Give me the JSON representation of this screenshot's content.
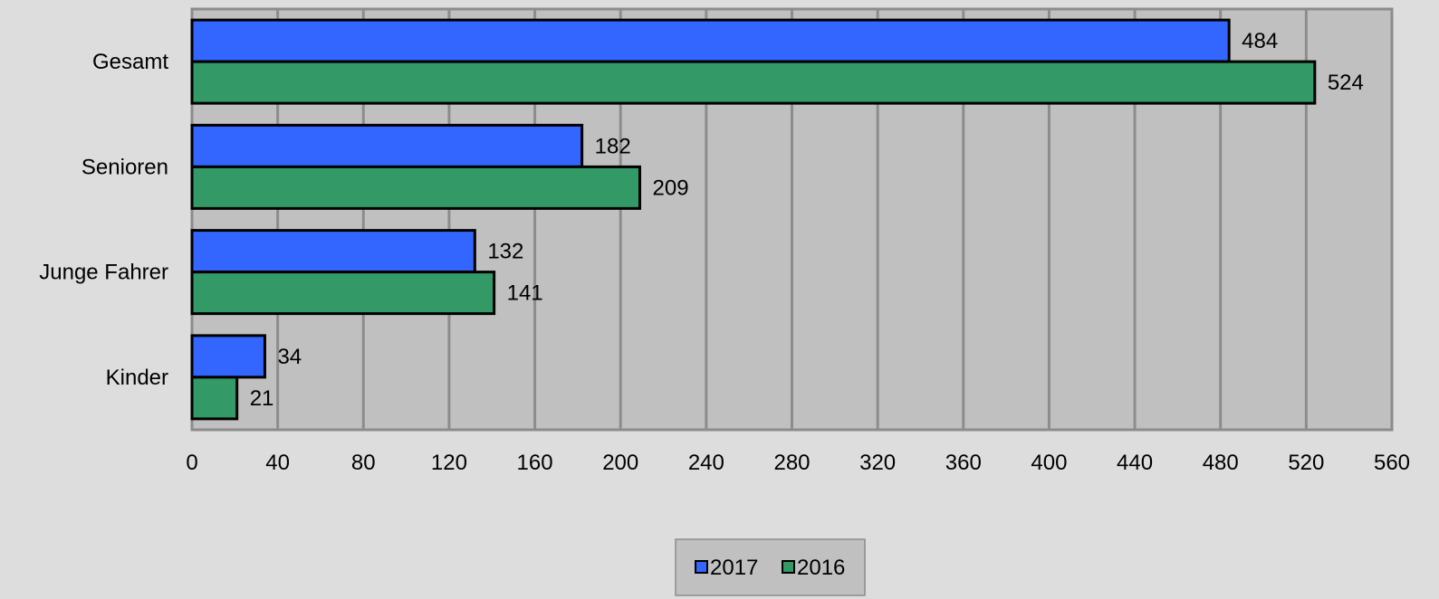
{
  "chart_data": {
    "type": "bar",
    "orientation": "horizontal",
    "categories": [
      "Gesamt",
      "Senioren",
      "Junge Fahrer",
      "Kinder"
    ],
    "series": [
      {
        "name": "2017",
        "values": [
          484,
          182,
          132,
          34
        ],
        "color": "#3366ff"
      },
      {
        "name": "2016",
        "values": [
          524,
          209,
          141,
          21
        ],
        "color": "#339966"
      }
    ],
    "xlim": [
      0,
      560
    ],
    "xticks": [
      0,
      40,
      80,
      120,
      160,
      200,
      240,
      280,
      320,
      360,
      400,
      440,
      480,
      520,
      560
    ],
    "title": "",
    "xlabel": "",
    "ylabel": "",
    "grid": "vertical",
    "legend": "bottom-center",
    "plot_background": "#c0c0c0",
    "page_background": "#dcdddc"
  }
}
